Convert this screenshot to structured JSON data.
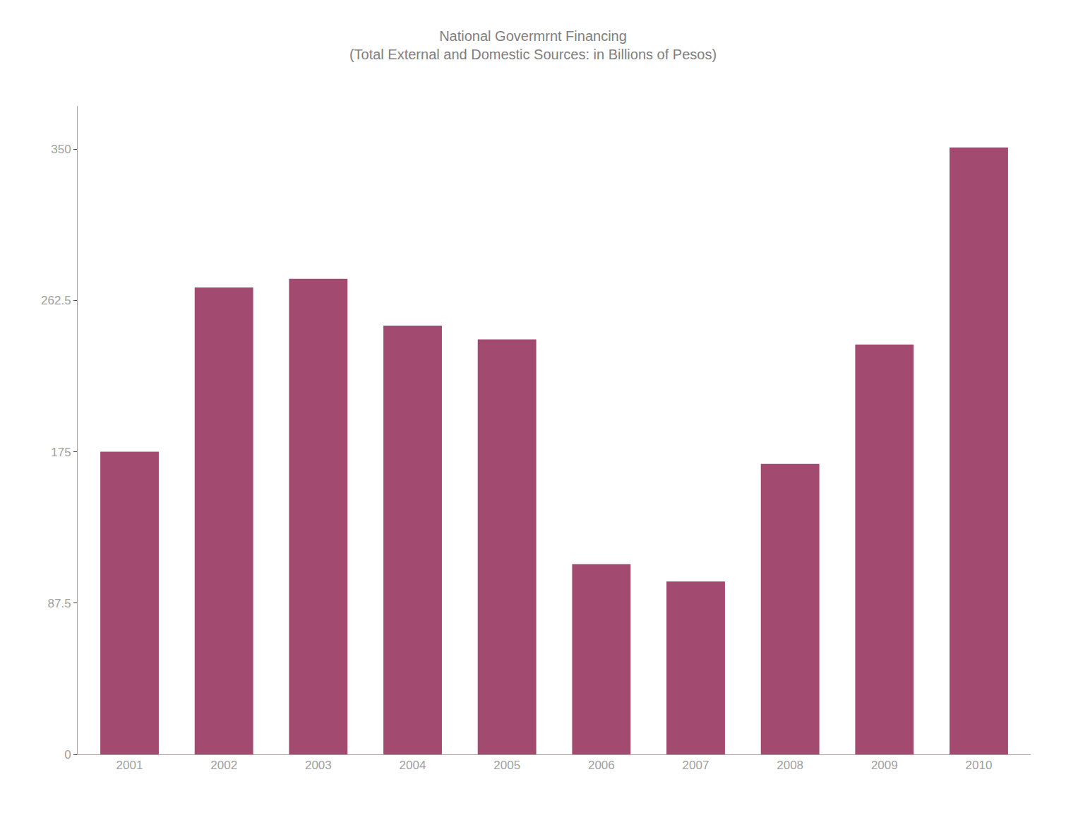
{
  "chart_data": {
    "type": "bar",
    "title": "National Govermrnt Financing",
    "subtitle": "(Total External and Domestic Sources: in Billions of Pesos)",
    "categories": [
      "2001",
      "2002",
      "2003",
      "2004",
      "2005",
      "2006",
      "2007",
      "2008",
      "2009",
      "2010"
    ],
    "values": [
      175,
      270,
      275,
      248,
      240,
      110,
      100,
      168,
      237,
      351
    ],
    "color": "#a34a70",
    "ylim": [
      0,
      375
    ],
    "yticks": [
      0,
      87.5,
      175,
      262.5,
      350
    ],
    "grid": false
  }
}
